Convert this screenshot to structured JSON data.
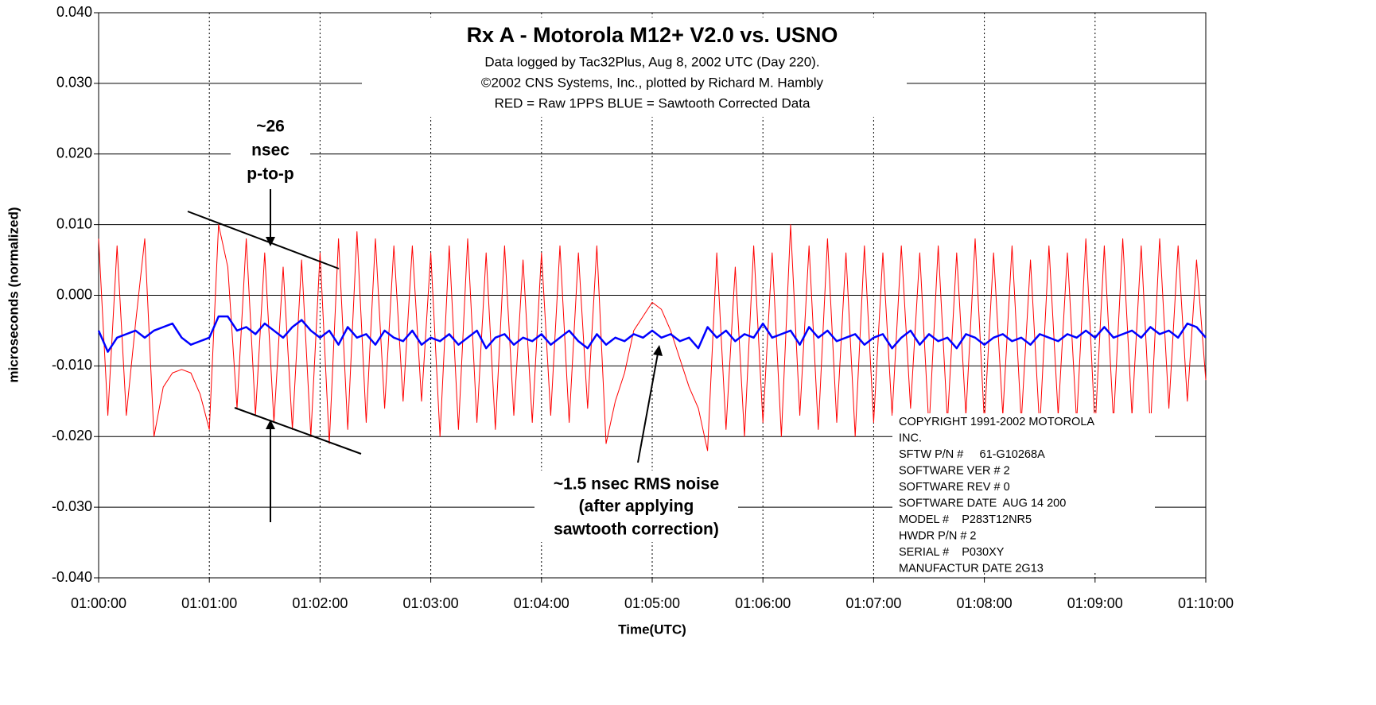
{
  "chart_data": {
    "type": "line",
    "title": "Rx A - Motorola M12+ V2.0 vs. USNO",
    "subtitle": [
      "Data logged by Tac32Plus, Aug 8, 2002 UTC (Day 220).",
      "©2002 CNS Systems, Inc., plotted by Richard M. Hambly",
      "RED = Raw 1PPS     BLUE = Sawtooth Corrected Data"
    ],
    "x_label": "Time(UTC)",
    "y_label": "microseconds (normalized)",
    "xlim": [
      "01:00:00",
      "01:10:00"
    ],
    "xticks": [
      "01:00:00",
      "01:01:00",
      "01:02:00",
      "01:03:00",
      "01:04:00",
      "01:05:00",
      "01:06:00",
      "01:07:00",
      "01:08:00",
      "01:09:00",
      "01:10:00"
    ],
    "ylim": [
      -0.04,
      0.04
    ],
    "yticks": [
      {
        "value": -0.04,
        "label": "-0.040"
      },
      {
        "value": -0.03,
        "label": "-0.030"
      },
      {
        "value": -0.02,
        "label": "-0.020"
      },
      {
        "value": -0.01,
        "label": "-0.010"
      },
      {
        "value": 0,
        "label": "0.000"
      },
      {
        "value": 0.01,
        "label": "0.010"
      },
      {
        "value": 0.02,
        "label": "0.020"
      },
      {
        "value": 0.03,
        "label": "0.030"
      },
      {
        "value": 0.04,
        "label": "0.040"
      }
    ],
    "grid": true,
    "x": [
      "01:00:00",
      "01:00:05",
      "01:00:10",
      "01:00:15",
      "01:00:20",
      "01:00:25",
      "01:00:30",
      "01:00:35",
      "01:00:40",
      "01:00:45",
      "01:00:50",
      "01:00:55",
      "01:01:00",
      "01:01:05",
      "01:01:10",
      "01:01:15",
      "01:01:20",
      "01:01:25",
      "01:01:30",
      "01:01:35",
      "01:01:40",
      "01:01:45",
      "01:01:50",
      "01:01:55",
      "01:02:00",
      "01:02:05",
      "01:02:10",
      "01:02:15",
      "01:02:20",
      "01:02:25",
      "01:02:30",
      "01:02:35",
      "01:02:40",
      "01:02:45",
      "01:02:50",
      "01:02:55",
      "01:03:00",
      "01:03:05",
      "01:03:10",
      "01:03:15",
      "01:03:20",
      "01:03:25",
      "01:03:30",
      "01:03:35",
      "01:03:40",
      "01:03:45",
      "01:03:50",
      "01:03:55",
      "01:04:00",
      "01:04:05",
      "01:04:10",
      "01:04:15",
      "01:04:20",
      "01:04:25",
      "01:04:30",
      "01:04:35",
      "01:04:40",
      "01:04:45",
      "01:04:50",
      "01:04:55",
      "01:05:00",
      "01:05:05",
      "01:05:10",
      "01:05:15",
      "01:05:20",
      "01:05:25",
      "01:05:30",
      "01:05:35",
      "01:05:40",
      "01:05:45",
      "01:05:50",
      "01:05:55",
      "01:06:00",
      "01:06:05",
      "01:06:10",
      "01:06:15",
      "01:06:20",
      "01:06:25",
      "01:06:30",
      "01:06:35",
      "01:06:40",
      "01:06:45",
      "01:06:50",
      "01:06:55",
      "01:07:00",
      "01:07:05",
      "01:07:10",
      "01:07:15",
      "01:07:20",
      "01:07:25",
      "01:07:30",
      "01:07:35",
      "01:07:40",
      "01:07:45",
      "01:07:50",
      "01:07:55",
      "01:08:00",
      "01:08:05",
      "01:08:10",
      "01:08:15",
      "01:08:20",
      "01:08:25",
      "01:08:30",
      "01:08:35",
      "01:08:40",
      "01:08:45",
      "01:08:50",
      "01:08:55",
      "01:09:00",
      "01:09:05",
      "01:09:10",
      "01:09:15",
      "01:09:20",
      "01:09:25",
      "01:09:30",
      "01:09:35",
      "01:09:40",
      "01:09:45",
      "01:09:50",
      "01:09:55",
      "01:10:00"
    ],
    "series": [
      {
        "color": "#ff0000",
        "width": 1,
        "values": [
          0.008,
          -0.017,
          0.007,
          -0.017,
          -0.004,
          0.008,
          -0.02,
          -0.013,
          -0.011,
          -0.0105,
          -0.011,
          -0.014,
          -0.019,
          0.01,
          0.004,
          -0.016,
          0.008,
          -0.017,
          0.006,
          -0.018,
          0.004,
          -0.019,
          0.005,
          -0.02,
          0.006,
          -0.021,
          0.008,
          -0.019,
          0.009,
          -0.018,
          0.008,
          -0.016,
          0.007,
          -0.015,
          0.007,
          -0.015,
          0.006,
          -0.02,
          0.007,
          -0.019,
          0.008,
          -0.018,
          0.006,
          -0.019,
          0.007,
          -0.017,
          0.005,
          -0.018,
          0.006,
          -0.017,
          0.007,
          -0.018,
          0.006,
          -0.016,
          0.007,
          -0.021,
          -0.015,
          -0.011,
          -0.005,
          -0.003,
          -0.001,
          -0.002,
          -0.005,
          -0.009,
          -0.013,
          -0.016,
          -0.022,
          0.006,
          -0.019,
          0.004,
          -0.02,
          0.007,
          -0.018,
          0.006,
          -0.02,
          0.01,
          -0.017,
          0.007,
          -0.019,
          0.008,
          -0.018,
          0.006,
          -0.02,
          0.007,
          -0.018,
          0.006,
          -0.017,
          0.007,
          -0.016,
          0.006,
          -0.019,
          0.007,
          -0.018,
          0.006,
          -0.017,
          0.008,
          -0.018,
          0.006,
          -0.017,
          0.007,
          -0.018,
          0.005,
          -0.019,
          0.007,
          -0.017,
          0.006,
          -0.018,
          0.008,
          -0.019,
          0.007,
          -0.018,
          0.008,
          -0.017,
          0.007,
          -0.019,
          0.008,
          -0.016,
          0.007,
          -0.015,
          0.005,
          -0.012
        ]
      },
      {
        "color": "#0000ff",
        "width": 2.5,
        "values": [
          -0.005,
          -0.008,
          -0.006,
          -0.0055,
          -0.005,
          -0.006,
          -0.005,
          -0.0045,
          -0.004,
          -0.006,
          -0.007,
          -0.0065,
          -0.006,
          -0.003,
          -0.003,
          -0.005,
          -0.0045,
          -0.0055,
          -0.004,
          -0.005,
          -0.006,
          -0.0045,
          -0.0035,
          -0.005,
          -0.006,
          -0.005,
          -0.007,
          -0.0045,
          -0.006,
          -0.0055,
          -0.007,
          -0.005,
          -0.006,
          -0.0065,
          -0.005,
          -0.007,
          -0.006,
          -0.0065,
          -0.0055,
          -0.007,
          -0.006,
          -0.005,
          -0.0075,
          -0.006,
          -0.0055,
          -0.007,
          -0.006,
          -0.0065,
          -0.0055,
          -0.007,
          -0.006,
          -0.005,
          -0.0065,
          -0.0075,
          -0.0055,
          -0.007,
          -0.006,
          -0.0065,
          -0.0055,
          -0.006,
          -0.005,
          -0.006,
          -0.0055,
          -0.0065,
          -0.006,
          -0.0075,
          -0.0045,
          -0.006,
          -0.005,
          -0.0065,
          -0.0055,
          -0.006,
          -0.004,
          -0.006,
          -0.0055,
          -0.005,
          -0.007,
          -0.0045,
          -0.006,
          -0.005,
          -0.0065,
          -0.006,
          -0.0055,
          -0.007,
          -0.006,
          -0.0055,
          -0.0075,
          -0.006,
          -0.005,
          -0.007,
          -0.0055,
          -0.0065,
          -0.006,
          -0.0075,
          -0.0055,
          -0.006,
          -0.007,
          -0.006,
          -0.0055,
          -0.0065,
          -0.006,
          -0.007,
          -0.0055,
          -0.006,
          -0.0065,
          -0.0055,
          -0.006,
          -0.005,
          -0.006,
          -0.0045,
          -0.006,
          -0.0055,
          -0.005,
          -0.006,
          -0.0045,
          -0.0055,
          -0.005,
          -0.006,
          -0.004,
          -0.0045,
          -0.006
        ]
      }
    ],
    "annotations": {
      "peak": [
        "~26",
        "nsec",
        "p-to-p"
      ],
      "noise": [
        "~1.5 nsec RMS noise",
        "(after applying",
        "sawtooth correction)"
      ]
    },
    "info_lines": [
      "COPYRIGHT 1991-2002 MOTOROLA",
      "INC.",
      "SFTW P/N #     61-G10268A",
      "SOFTWARE VER # 2",
      "SOFTWARE REV # 0",
      "SOFTWARE DATE  AUG 14 200",
      "MODEL #    P283T12NR5",
      "HWDR P/N # 2",
      "SERIAL #    P030XY",
      "MANUFACTUR DATE 2G13"
    ]
  }
}
